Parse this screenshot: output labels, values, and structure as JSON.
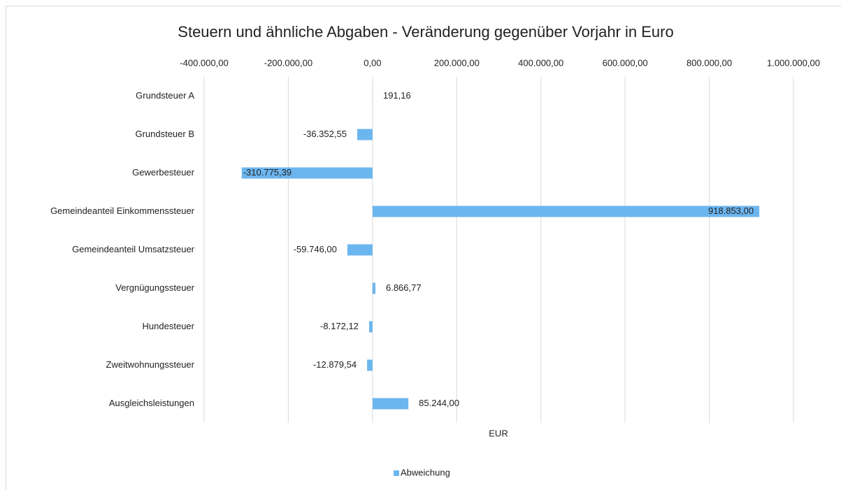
{
  "chart_data": {
    "type": "barh",
    "title": "Steuern und ähnliche Abgaben - Veränderung gegenüber Vorjahr in Euro",
    "xlabel": "EUR",
    "categories": [
      "Grundsteuer A",
      "Grundsteuer B",
      "Gewerbesteuer",
      "Gemeindeanteil Einkommenssteuer",
      "Gemeindeanteil Umsatzsteuer",
      "Vergnügungssteuer",
      "Hundesteuer",
      "Zweitwohnungssteuer",
      "Ausgleichsleistungen"
    ],
    "series": [
      {
        "name": "Abweichung",
        "color": "#6cb6f0",
        "values": [
          191.16,
          -36352.55,
          -310775.39,
          918853,
          -59746,
          6866.77,
          -8172.12,
          -12879.54,
          85244
        ],
        "value_labels": [
          "191,16",
          "-36.352,55",
          "-310.775,39",
          "918.853,00",
          "-59.746,00",
          "6.866,77",
          "-8.172,12",
          "-12.879,54",
          "85.244,00"
        ]
      }
    ],
    "xlim": [
      -400000,
      1000000
    ],
    "xticks": [
      {
        "value": -400000,
        "label": "-400.000,00"
      },
      {
        "value": -200000,
        "label": "-200.000,00"
      },
      {
        "value": 0,
        "label": "0,00"
      },
      {
        "value": 200000,
        "label": "200.000,00"
      },
      {
        "value": 400000,
        "label": "400.000,00"
      },
      {
        "value": 600000,
        "label": "600.000,00"
      },
      {
        "value": 800000,
        "label": "800.000,00"
      },
      {
        "value": 1000000,
        "label": "1.000.000,00"
      }
    ],
    "grid": true,
    "legend": "bottom"
  }
}
